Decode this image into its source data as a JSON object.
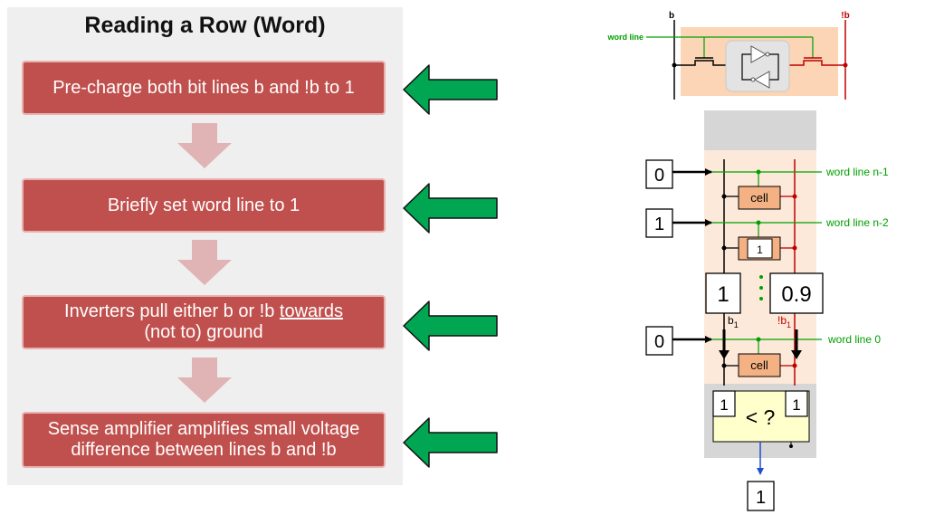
{
  "title": "Reading a Row (Word)",
  "steps": [
    {
      "text": "Pre-charge both bit lines b and !b to 1"
    },
    {
      "text": "Briefly set word line  to 1"
    },
    {
      "text_before": "Inverters pull either b or !b ",
      "text_underlined": "towards",
      "text_after": "(not to) ground"
    },
    {
      "line1": "Sense amplifier amplifies small voltage",
      "line2": "difference between lines b and !b"
    }
  ],
  "top_cell": {
    "bit_line_b": "b",
    "bit_line_not_b": "!b",
    "word_line": "word line"
  },
  "array": {
    "word_lines": [
      {
        "label": "word line n-1",
        "input": "0"
      },
      {
        "label": "word line n-2",
        "input": "1"
      },
      {
        "label": "word line 0",
        "input": "0"
      }
    ],
    "cell_label": "cell",
    "stored_value": "1",
    "bit_voltage_b": "1",
    "bit_voltage_not_b": "0.9",
    "bit_label_b": "b",
    "bit_label_not_b": "!b",
    "bit_subscript": "1",
    "sense_amp": {
      "left_input": "1",
      "right_input": "1",
      "compare": "< ?"
    },
    "output": "1"
  },
  "colors": {
    "step_fill": "#c0504d",
    "down_arrow": "#e0b4b4",
    "green_arrow": "#00a651",
    "word_line": "#00a000",
    "not_b_line": "#c00000",
    "cell_fill": "#f4b183",
    "array_bg": "#fde9d9",
    "sense_amp_fill": "#ffffcc",
    "output_arrow": "#1f4fd1"
  }
}
